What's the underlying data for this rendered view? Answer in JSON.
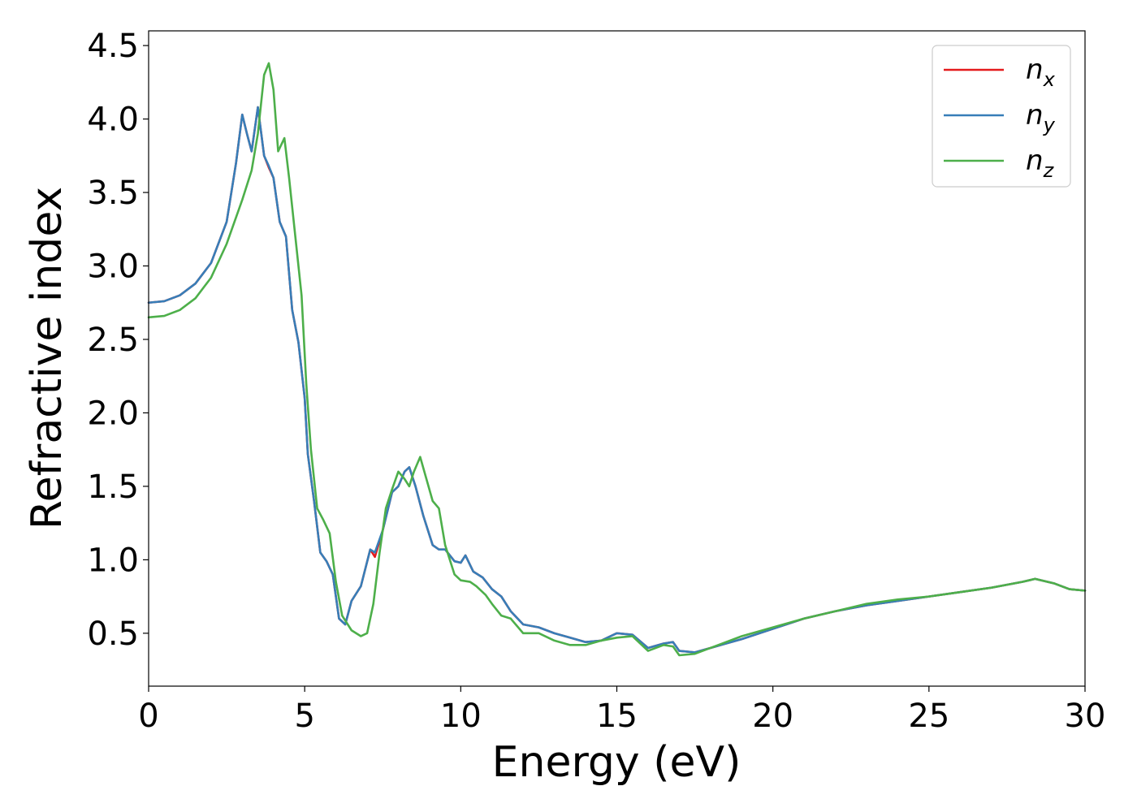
{
  "chart_data": {
    "type": "line",
    "xlabel": "Energy (eV)",
    "ylabel": "Refractive index",
    "xlim": [
      0,
      30
    ],
    "ylim": [
      0.14,
      4.6
    ],
    "x_ticks": [
      0,
      5,
      10,
      15,
      20,
      25,
      30
    ],
    "x_tick_labels": [
      "0",
      "5",
      "10",
      "15",
      "20",
      "25",
      "30"
    ],
    "y_ticks": [
      0.5,
      1.0,
      1.5,
      2.0,
      2.5,
      3.0,
      3.5,
      4.0,
      4.5
    ],
    "y_tick_labels": [
      "0.5",
      "1.0",
      "1.5",
      "2.0",
      "2.5",
      "3.0",
      "3.5",
      "4.0",
      "4.5"
    ],
    "grid": false,
    "legend_position": "top-right",
    "series": [
      {
        "name": "n",
        "subscript": "x",
        "color": "#e41a1c",
        "points": [
          [
            0,
            2.75
          ],
          [
            0.5,
            2.76
          ],
          [
            1,
            2.8
          ],
          [
            1.5,
            2.88
          ],
          [
            2,
            3.02
          ],
          [
            2.5,
            3.3
          ],
          [
            2.8,
            3.7
          ],
          [
            3.0,
            4.03
          ],
          [
            3.15,
            3.9
          ],
          [
            3.3,
            3.78
          ],
          [
            3.5,
            4.08
          ],
          [
            3.7,
            3.75
          ],
          [
            3.85,
            3.67
          ],
          [
            4.0,
            3.6
          ],
          [
            4.2,
            3.3
          ],
          [
            4.4,
            3.2
          ],
          [
            4.6,
            2.7
          ],
          [
            4.8,
            2.48
          ],
          [
            5.0,
            2.1
          ],
          [
            5.1,
            1.72
          ],
          [
            5.3,
            1.4
          ],
          [
            5.5,
            1.05
          ],
          [
            5.7,
            0.99
          ],
          [
            5.9,
            0.9
          ],
          [
            6.1,
            0.6
          ],
          [
            6.3,
            0.56
          ],
          [
            6.5,
            0.72
          ],
          [
            6.8,
            0.82
          ],
          [
            7.1,
            1.07
          ],
          [
            7.25,
            1.02
          ],
          [
            7.5,
            1.2
          ],
          [
            7.8,
            1.46
          ],
          [
            8.0,
            1.5
          ],
          [
            8.2,
            1.6
          ],
          [
            8.35,
            1.63
          ],
          [
            8.55,
            1.5
          ],
          [
            8.8,
            1.3
          ],
          [
            9.1,
            1.1
          ],
          [
            9.3,
            1.07
          ],
          [
            9.5,
            1.07
          ],
          [
            9.8,
            0.99
          ],
          [
            10.0,
            0.98
          ],
          [
            10.15,
            1.03
          ],
          [
            10.4,
            0.92
          ],
          [
            10.7,
            0.88
          ],
          [
            11.0,
            0.8
          ],
          [
            11.3,
            0.75
          ],
          [
            11.6,
            0.65
          ],
          [
            12.0,
            0.56
          ],
          [
            12.5,
            0.54
          ],
          [
            13.0,
            0.5
          ],
          [
            13.5,
            0.47
          ],
          [
            14.0,
            0.44
          ],
          [
            14.5,
            0.45
          ],
          [
            15.0,
            0.5
          ],
          [
            15.5,
            0.49
          ],
          [
            16.0,
            0.4
          ],
          [
            16.5,
            0.43
          ],
          [
            16.8,
            0.44
          ],
          [
            17.0,
            0.38
          ],
          [
            17.5,
            0.37
          ],
          [
            18.0,
            0.4
          ],
          [
            19.0,
            0.46
          ],
          [
            20.0,
            0.53
          ],
          [
            21,
            0.6
          ],
          [
            22,
            0.65
          ],
          [
            23,
            0.69
          ],
          [
            24,
            0.72
          ],
          [
            25,
            0.75
          ],
          [
            26,
            0.78
          ],
          [
            27,
            0.81
          ],
          [
            28,
            0.85
          ],
          [
            28.4,
            0.87
          ],
          [
            29,
            0.84
          ],
          [
            29.5,
            0.8
          ],
          [
            30,
            0.79
          ]
        ]
      },
      {
        "name": "n",
        "subscript": "y",
        "color": "#377eb8",
        "points": [
          [
            0,
            2.75
          ],
          [
            0.5,
            2.76
          ],
          [
            1,
            2.8
          ],
          [
            1.5,
            2.88
          ],
          [
            2,
            3.02
          ],
          [
            2.5,
            3.3
          ],
          [
            2.8,
            3.7
          ],
          [
            3.0,
            4.03
          ],
          [
            3.15,
            3.9
          ],
          [
            3.3,
            3.78
          ],
          [
            3.5,
            4.08
          ],
          [
            3.7,
            3.75
          ],
          [
            3.85,
            3.68
          ],
          [
            4.0,
            3.6
          ],
          [
            4.2,
            3.3
          ],
          [
            4.4,
            3.2
          ],
          [
            4.6,
            2.7
          ],
          [
            4.8,
            2.48
          ],
          [
            5.0,
            2.1
          ],
          [
            5.1,
            1.72
          ],
          [
            5.3,
            1.4
          ],
          [
            5.5,
            1.05
          ],
          [
            5.7,
            0.99
          ],
          [
            5.9,
            0.9
          ],
          [
            6.1,
            0.6
          ],
          [
            6.3,
            0.56
          ],
          [
            6.5,
            0.72
          ],
          [
            6.8,
            0.82
          ],
          [
            7.1,
            1.07
          ],
          [
            7.25,
            1.05
          ],
          [
            7.5,
            1.2
          ],
          [
            7.8,
            1.46
          ],
          [
            8.0,
            1.5
          ],
          [
            8.2,
            1.6
          ],
          [
            8.35,
            1.63
          ],
          [
            8.55,
            1.5
          ],
          [
            8.8,
            1.3
          ],
          [
            9.1,
            1.1
          ],
          [
            9.3,
            1.07
          ],
          [
            9.5,
            1.07
          ],
          [
            9.8,
            0.99
          ],
          [
            10.0,
            0.98
          ],
          [
            10.15,
            1.03
          ],
          [
            10.4,
            0.92
          ],
          [
            10.7,
            0.88
          ],
          [
            11.0,
            0.8
          ],
          [
            11.3,
            0.75
          ],
          [
            11.6,
            0.65
          ],
          [
            12.0,
            0.56
          ],
          [
            12.5,
            0.54
          ],
          [
            13.0,
            0.5
          ],
          [
            13.5,
            0.47
          ],
          [
            14.0,
            0.44
          ],
          [
            14.5,
            0.45
          ],
          [
            15.0,
            0.5
          ],
          [
            15.5,
            0.49
          ],
          [
            16.0,
            0.4
          ],
          [
            16.5,
            0.43
          ],
          [
            16.8,
            0.44
          ],
          [
            17.0,
            0.38
          ],
          [
            17.5,
            0.37
          ],
          [
            18.0,
            0.4
          ],
          [
            19.0,
            0.46
          ],
          [
            20.0,
            0.53
          ],
          [
            21,
            0.6
          ],
          [
            22,
            0.65
          ],
          [
            23,
            0.69
          ],
          [
            24,
            0.72
          ],
          [
            25,
            0.75
          ],
          [
            26,
            0.78
          ],
          [
            27,
            0.81
          ],
          [
            28,
            0.85
          ],
          [
            28.4,
            0.87
          ],
          [
            29,
            0.84
          ],
          [
            29.5,
            0.8
          ],
          [
            30,
            0.79
          ]
        ]
      },
      {
        "name": "n",
        "subscript": "z",
        "color": "#4daf4a",
        "points": [
          [
            0,
            2.65
          ],
          [
            0.5,
            2.66
          ],
          [
            1,
            2.7
          ],
          [
            1.5,
            2.78
          ],
          [
            2,
            2.92
          ],
          [
            2.5,
            3.15
          ],
          [
            3.0,
            3.45
          ],
          [
            3.3,
            3.65
          ],
          [
            3.5,
            3.9
          ],
          [
            3.7,
            4.3
          ],
          [
            3.85,
            4.38
          ],
          [
            4.0,
            4.2
          ],
          [
            4.15,
            3.78
          ],
          [
            4.35,
            3.87
          ],
          [
            4.5,
            3.6
          ],
          [
            4.7,
            3.2
          ],
          [
            4.9,
            2.8
          ],
          [
            5.05,
            2.2
          ],
          [
            5.2,
            1.75
          ],
          [
            5.4,
            1.35
          ],
          [
            5.6,
            1.27
          ],
          [
            5.8,
            1.18
          ],
          [
            6.0,
            0.85
          ],
          [
            6.2,
            0.62
          ],
          [
            6.5,
            0.52
          ],
          [
            6.8,
            0.48
          ],
          [
            7.0,
            0.5
          ],
          [
            7.2,
            0.7
          ],
          [
            7.4,
            1.05
          ],
          [
            7.6,
            1.35
          ],
          [
            7.8,
            1.48
          ],
          [
            8.0,
            1.6
          ],
          [
            8.2,
            1.55
          ],
          [
            8.35,
            1.5
          ],
          [
            8.5,
            1.6
          ],
          [
            8.7,
            1.7
          ],
          [
            8.9,
            1.55
          ],
          [
            9.1,
            1.4
          ],
          [
            9.3,
            1.35
          ],
          [
            9.5,
            1.1
          ],
          [
            9.8,
            0.9
          ],
          [
            10.0,
            0.86
          ],
          [
            10.3,
            0.85
          ],
          [
            10.5,
            0.82
          ],
          [
            10.8,
            0.76
          ],
          [
            11.0,
            0.7
          ],
          [
            11.3,
            0.62
          ],
          [
            11.6,
            0.6
          ],
          [
            12.0,
            0.5
          ],
          [
            12.5,
            0.5
          ],
          [
            13.0,
            0.45
          ],
          [
            13.5,
            0.42
          ],
          [
            14.0,
            0.42
          ],
          [
            14.5,
            0.45
          ],
          [
            15.0,
            0.47
          ],
          [
            15.5,
            0.48
          ],
          [
            16.0,
            0.38
          ],
          [
            16.5,
            0.42
          ],
          [
            16.8,
            0.41
          ],
          [
            17.0,
            0.35
          ],
          [
            17.5,
            0.36
          ],
          [
            18.0,
            0.4
          ],
          [
            19.0,
            0.48
          ],
          [
            20.0,
            0.54
          ],
          [
            21,
            0.6
          ],
          [
            22,
            0.65
          ],
          [
            23,
            0.7
          ],
          [
            24,
            0.73
          ],
          [
            25,
            0.75
          ],
          [
            26,
            0.78
          ],
          [
            27,
            0.81
          ],
          [
            28,
            0.85
          ],
          [
            28.4,
            0.87
          ],
          [
            29,
            0.84
          ],
          [
            29.5,
            0.8
          ],
          [
            30,
            0.79
          ]
        ]
      }
    ]
  }
}
